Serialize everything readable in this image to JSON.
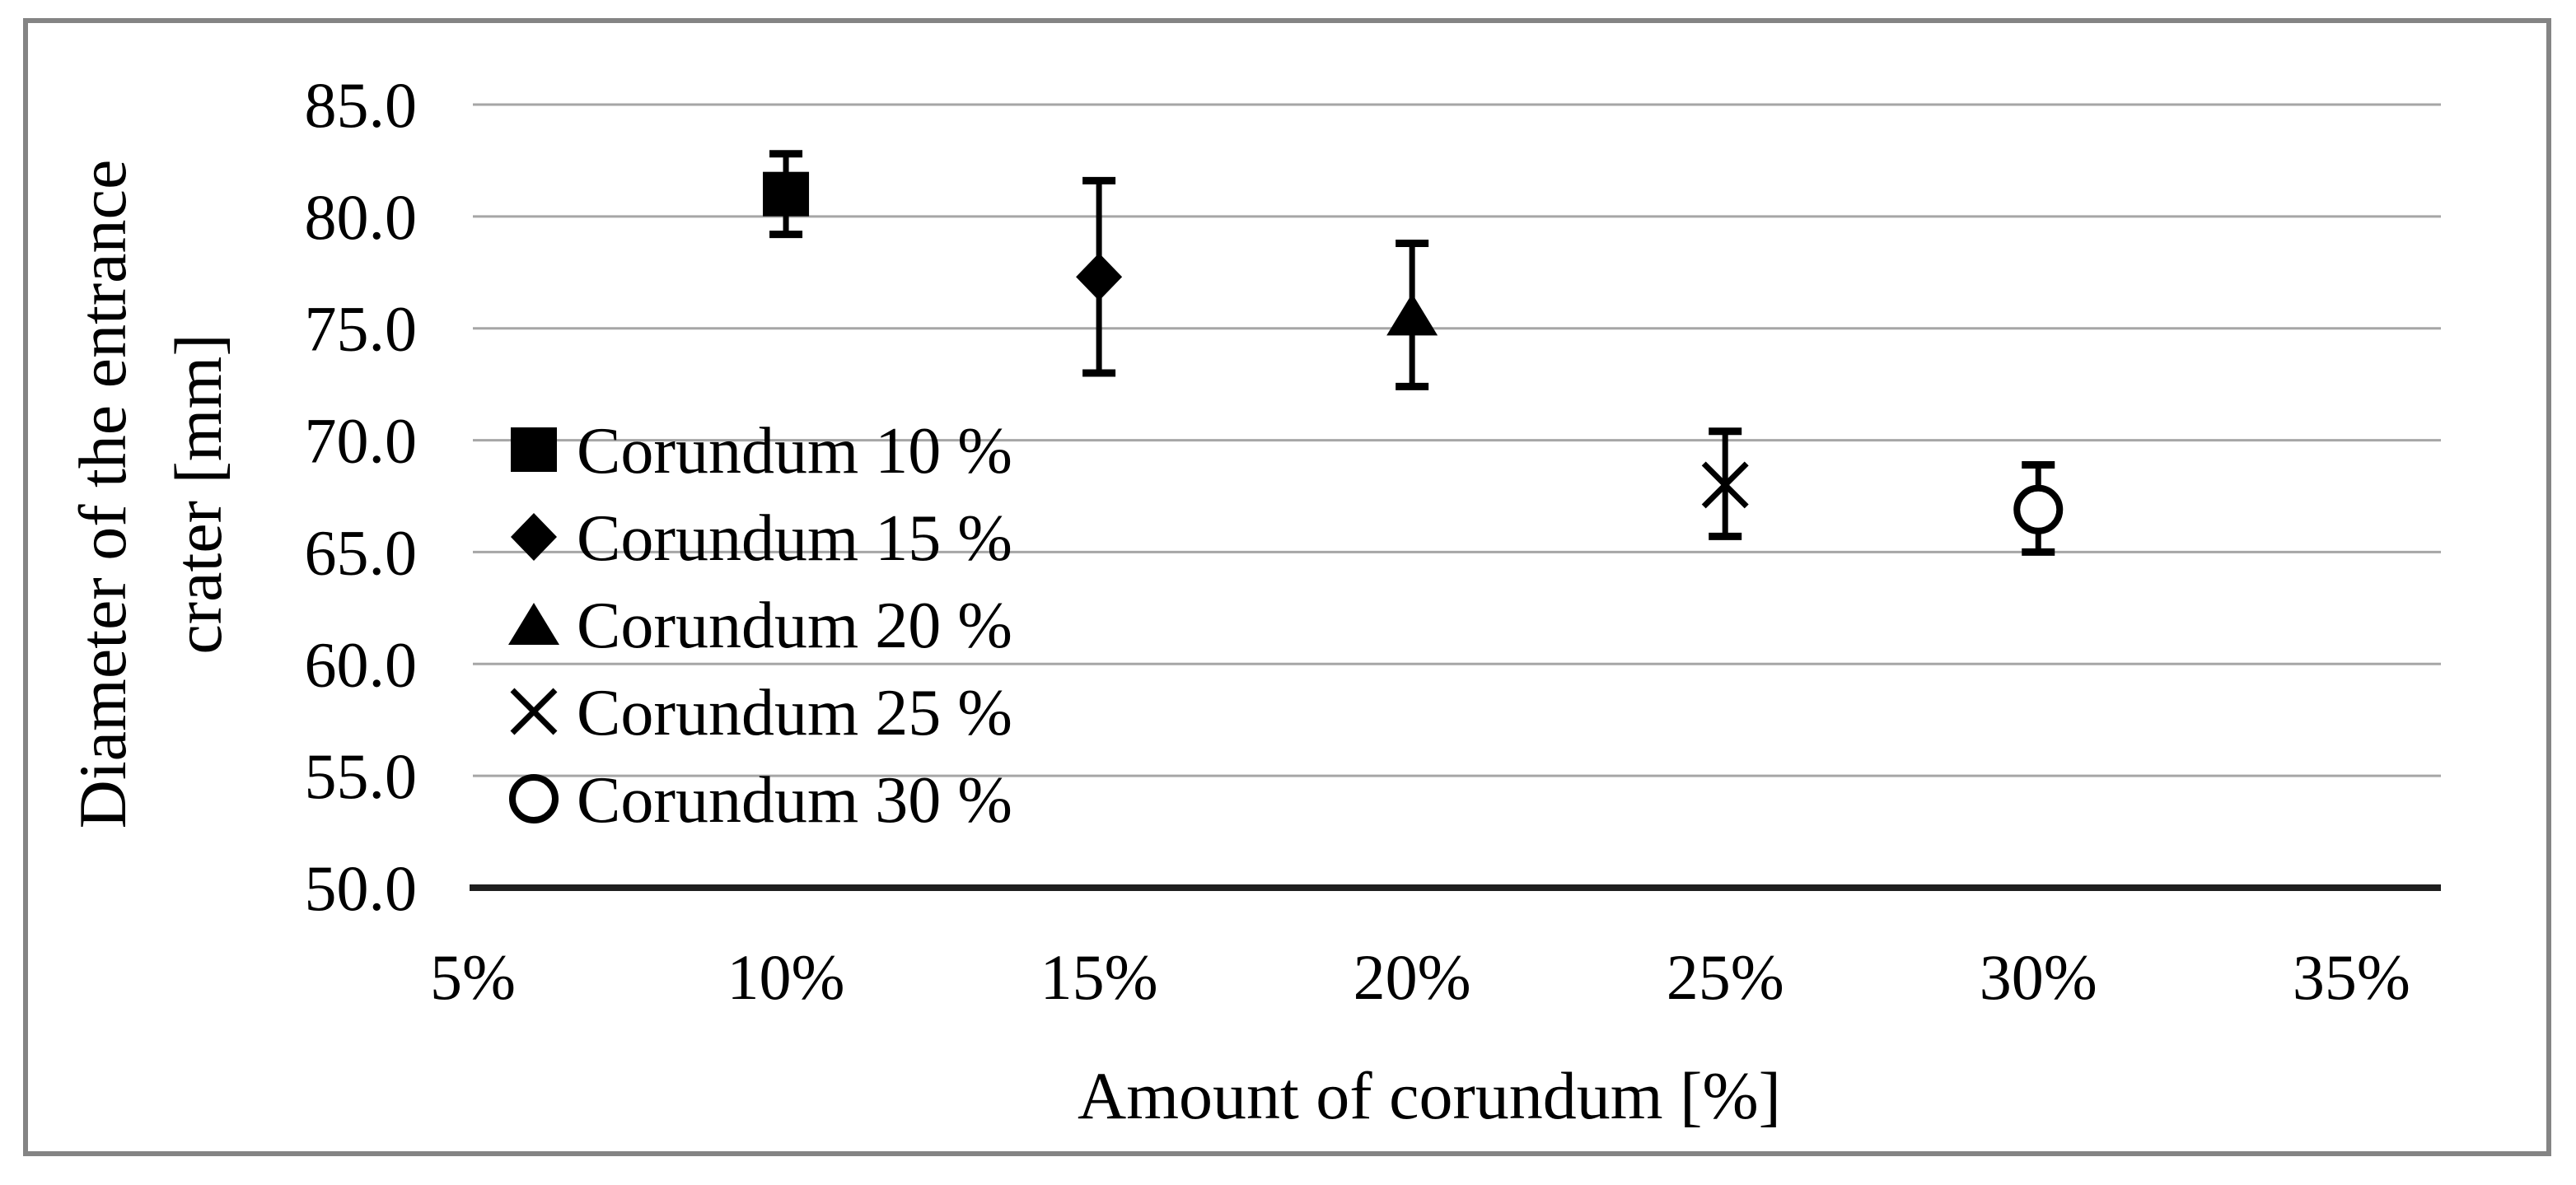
{
  "chart_data": {
    "type": "scatter",
    "title": "",
    "xlabel": "Amount of corundum [%]",
    "ylabel_line1": "Diameter of the entrance",
    "ylabel_line2": "crater [mm]",
    "xlim": [
      5,
      36.43
    ],
    "ylim": [
      50,
      85
    ],
    "grid": "horizontal-only",
    "legend_position": "inside-middle-left",
    "x_ticks": [
      {
        "value": 5,
        "label": "5%"
      },
      {
        "value": 10,
        "label": "10%"
      },
      {
        "value": 15,
        "label": "15%"
      },
      {
        "value": 20,
        "label": "20%"
      },
      {
        "value": 25,
        "label": "25%"
      },
      {
        "value": 30,
        "label": "30%"
      },
      {
        "value": 35,
        "label": "35%"
      }
    ],
    "y_ticks": [
      {
        "value": 85,
        "label": "85.0"
      },
      {
        "value": 80,
        "label": "80.0"
      },
      {
        "value": 75,
        "label": "75.0"
      },
      {
        "value": 70,
        "label": "70.0"
      },
      {
        "value": 65,
        "label": "65.0"
      },
      {
        "value": 60,
        "label": "60.0"
      },
      {
        "value": 55,
        "label": "55.0"
      },
      {
        "value": 50,
        "label": "50.0"
      }
    ],
    "series": [
      {
        "name": "Corundum 10 %",
        "marker": "filled-square",
        "x": 10,
        "y": 81.0,
        "err_plus": 1.8,
        "err_minus": 1.8
      },
      {
        "name": "Corundum 15 %",
        "marker": "filled-diamond",
        "x": 15,
        "y": 77.3,
        "err_plus": 4.3,
        "err_minus": 4.3
      },
      {
        "name": "Corundum 20 %",
        "marker": "filled-triangle",
        "x": 20,
        "y": 75.6,
        "err_plus": 3.2,
        "err_minus": 3.2
      },
      {
        "name": "Corundum 25 %",
        "marker": "x-cross",
        "x": 25,
        "y": 68.0,
        "err_plus": 2.4,
        "err_minus": 2.3
      },
      {
        "name": "Corundum 30 %",
        "marker": "open-circle",
        "x": 30,
        "y": 66.9,
        "err_plus": 2.0,
        "err_minus": 1.9
      }
    ],
    "colors": {
      "marker": "#000000",
      "gridline": "#a6a6a6",
      "axis_line": "#1f1f1f",
      "frame_border": "#848484",
      "background": "#ffffff",
      "text": "#000000"
    }
  }
}
